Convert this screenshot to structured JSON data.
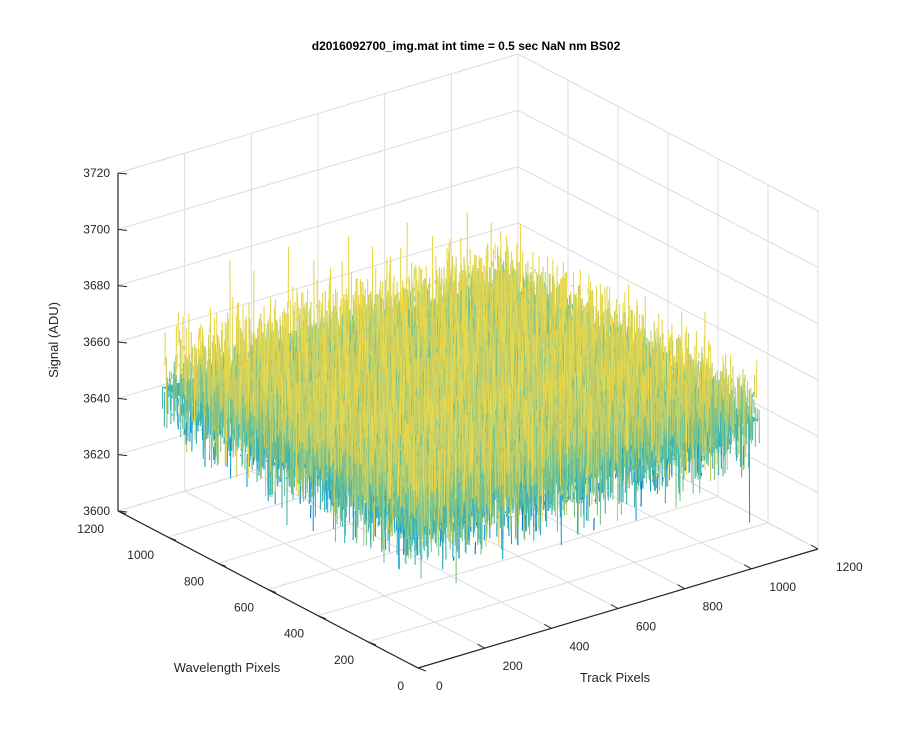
{
  "chart_data": {
    "type": "surface",
    "title": "d2016092700_img.mat int time = 0.5 sec  NaN nm BS02",
    "xlabel": "Track Pixels",
    "ylabel": "Wavelength Pixels",
    "zlabel": "Signal (ADU)",
    "xlim": [
      0,
      1200
    ],
    "ylim": [
      0,
      1200
    ],
    "zlim": [
      3600,
      3720
    ],
    "x_ticks": [
      0,
      200,
      400,
      600,
      800,
      1000,
      1200
    ],
    "y_ticks": [
      0,
      200,
      400,
      600,
      800,
      1000,
      1200
    ],
    "z_ticks": [
      3600,
      3620,
      3640,
      3660,
      3680,
      3700,
      3720
    ],
    "surface_extent": {
      "x": [
        1,
        1024
      ],
      "y": [
        1,
        1024
      ]
    },
    "signal_mean": 3652,
    "signal_spread": [
      3625,
      3690
    ],
    "grid": true,
    "colormap": [
      "#0072bd",
      "#1a9ed0",
      "#3fb5b0",
      "#7cc38a",
      "#c8cf64",
      "#e9d84a"
    ]
  }
}
